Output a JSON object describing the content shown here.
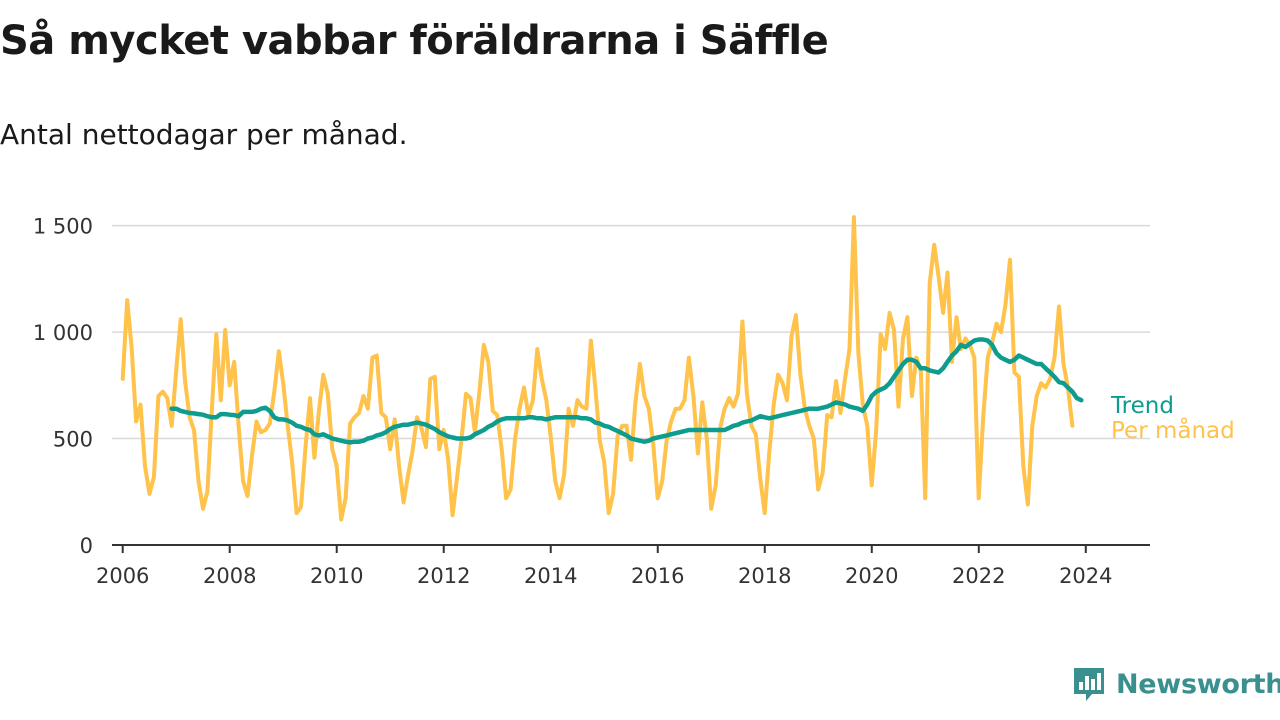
{
  "header": {
    "title": "Så mycket vabbar föräldrarna i Säffle",
    "subtitle": "Antal nettodagar per månad."
  },
  "brand": {
    "name": "Newsworthy",
    "color": "#3a8f8f"
  },
  "colors": {
    "monthly": "#ffc24a",
    "trend": "#0e9c8e",
    "grid": "#d9d9d9",
    "axis": "#333333"
  },
  "chart_data": {
    "type": "line",
    "title": "Så mycket vabbar föräldrarna i Säffle",
    "subtitle": "Antal nettodagar per månad.",
    "xlabel": "",
    "ylabel": "",
    "ylim": [
      0,
      1550
    ],
    "xlim": [
      2005.8,
      2025.2
    ],
    "yticks": [
      0,
      500,
      1000,
      1500
    ],
    "ytick_labels": [
      "0",
      "500",
      "1 000",
      "1 500"
    ],
    "xticks": [
      2006,
      2008,
      2010,
      2012,
      2014,
      2016,
      2018,
      2020,
      2022,
      2024
    ],
    "xtick_labels": [
      "2006",
      "2008",
      "2010",
      "2012",
      "2014",
      "2016",
      "2018",
      "2020",
      "2022",
      "2024"
    ],
    "grid": "horizontal",
    "legend": "inline-right",
    "series": [
      {
        "name": "Per månad",
        "color": "#ffc24a",
        "x_start": 2006.0,
        "x_step": 0.08333,
        "values": [
          780,
          1150,
          930,
          580,
          660,
          370,
          240,
          320,
          700,
          720,
          690,
          560,
          820,
          1060,
          770,
          600,
          540,
          300,
          170,
          250,
          640,
          990,
          680,
          1010,
          750,
          860,
          560,
          300,
          230,
          420,
          580,
          530,
          540,
          570,
          720,
          910,
          760,
          560,
          390,
          150,
          180,
          460,
          690,
          410,
          630,
          800,
          710,
          450,
          370,
          120,
          220,
          570,
          600,
          620,
          700,
          640,
          880,
          890,
          620,
          600,
          450,
          590,
          370,
          200,
          330,
          440,
          600,
          550,
          460,
          780,
          790,
          450,
          540,
          400,
          140,
          320,
          500,
          710,
          690,
          530,
          720,
          940,
          860,
          630,
          610,
          450,
          220,
          260,
          500,
          640,
          740,
          610,
          680,
          920,
          780,
          680,
          510,
          300,
          220,
          330,
          640,
          560,
          680,
          650,
          640,
          960,
          740,
          490,
          390,
          150,
          240,
          510,
          560,
          560,
          400,
          670,
          850,
          700,
          640,
          470,
          220,
          300,
          490,
          580,
          640,
          640,
          680,
          880,
          700,
          430,
          670,
          500,
          170,
          280,
          550,
          640,
          690,
          650,
          710,
          1050,
          710,
          560,
          520,
          310,
          150,
          430,
          660,
          800,
          760,
          680,
          980,
          1080,
          800,
          640,
          560,
          500,
          260,
          340,
          610,
          600,
          770,
          620,
          780,
          920,
          1540,
          900,
          660,
          560,
          280,
          540,
          990,
          920,
          1090,
          1010,
          650,
          970,
          1070,
          700,
          880,
          820,
          220,
          1230,
          1410,
          1260,
          1090,
          1280,
          860,
          1070,
          920,
          970,
          940,
          880,
          220,
          600,
          880,
          950,
          1040,
          1000,
          1130,
          1340,
          810,
          790,
          370,
          190,
          560,
          700,
          760,
          740,
          780,
          880,
          1120,
          850,
          740,
          560
        ]
      },
      {
        "name": "Trend",
        "color": "#0e9c8e",
        "x_start": 2006.9167,
        "x_step": 0.08333,
        "values": [
          640,
          640,
          630,
          625,
          620,
          618,
          615,
          612,
          605,
          600,
          600,
          615,
          615,
          612,
          610,
          605,
          625,
          625,
          625,
          630,
          640,
          645,
          630,
          600,
          590,
          590,
          585,
          575,
          560,
          555,
          545,
          540,
          520,
          515,
          520,
          510,
          500,
          495,
          490,
          485,
          482,
          485,
          485,
          490,
          500,
          505,
          515,
          520,
          530,
          545,
          555,
          560,
          565,
          565,
          570,
          575,
          570,
          565,
          555,
          545,
          530,
          520,
          510,
          505,
          500,
          500,
          500,
          505,
          520,
          530,
          540,
          555,
          565,
          580,
          590,
          595,
          595,
          595,
          595,
          595,
          600,
          600,
          595,
          595,
          590,
          595,
          600,
          600,
          600,
          600,
          600,
          600,
          595,
          595,
          590,
          575,
          570,
          560,
          555,
          545,
          535,
          525,
          515,
          500,
          495,
          490,
          485,
          490,
          500,
          505,
          510,
          515,
          520,
          525,
          530,
          535,
          540,
          540,
          540,
          540,
          540,
          540,
          540,
          540,
          540,
          550,
          560,
          565,
          575,
          580,
          585,
          595,
          605,
          600,
          595,
          600,
          605,
          610,
          615,
          620,
          625,
          630,
          635,
          640,
          640,
          640,
          645,
          650,
          660,
          670,
          665,
          660,
          650,
          645,
          640,
          630,
          660,
          700,
          720,
          730,
          740,
          760,
          790,
          820,
          850,
          870,
          870,
          860,
          830,
          830,
          820,
          815,
          810,
          830,
          860,
          890,
          910,
          940,
          930,
          945,
          960,
          965,
          965,
          960,
          940,
          900,
          880,
          870,
          860,
          870,
          890,
          880,
          870,
          860,
          850,
          850,
          830,
          810,
          790,
          765,
          760,
          740,
          720,
          690,
          680
        ]
      }
    ],
    "legend_labels": [
      "Trend",
      "Per månad"
    ]
  }
}
